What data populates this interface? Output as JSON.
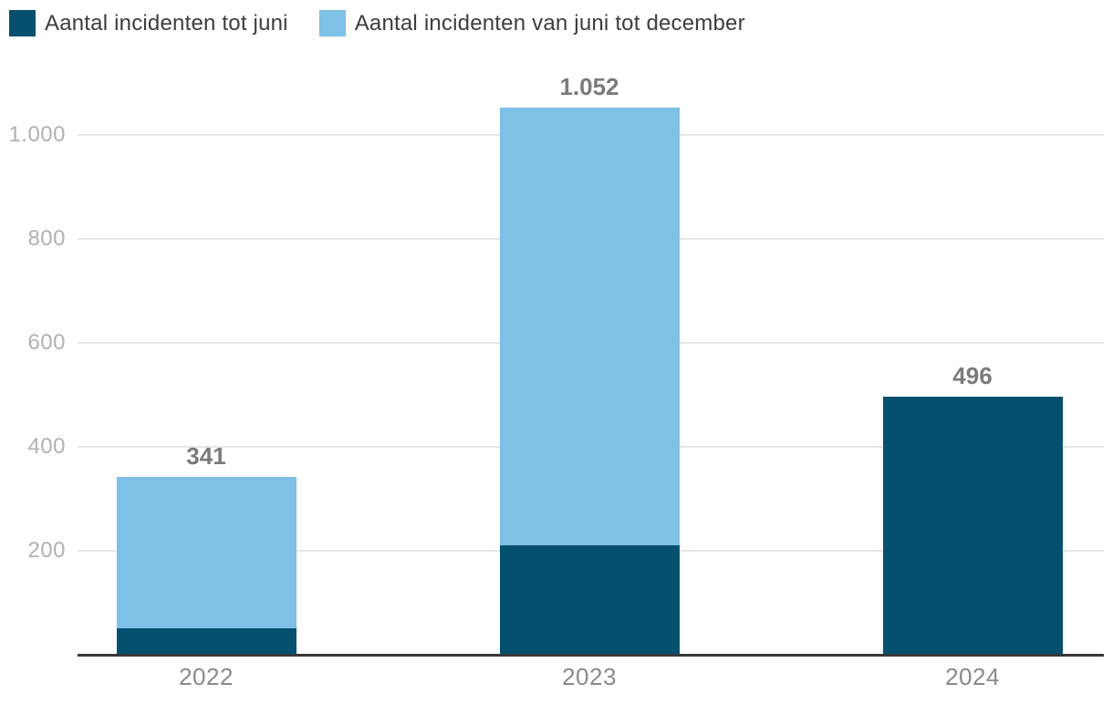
{
  "chart_data": {
    "type": "bar",
    "stacked": true,
    "title": "",
    "xlabel": "",
    "ylabel": "",
    "categories": [
      "2022",
      "2023",
      "2024"
    ],
    "series": [
      {
        "name": "Aantal incidenten tot juni",
        "color": "#05506E",
        "values": [
          50,
          210,
          496
        ]
      },
      {
        "name": "Aantal incidenten van juni tot december",
        "color": "#7FC0E7",
        "values": [
          291,
          842,
          0
        ]
      }
    ],
    "totals": [
      341,
      1052,
      496
    ],
    "total_labels": [
      "341",
      "1.052",
      "496"
    ],
    "ylim": [
      0,
      1100
    ],
    "yticks": [
      200,
      400,
      600,
      800,
      1000
    ],
    "ytick_labels": [
      "200",
      "400",
      "600",
      "800",
      "1.000"
    ],
    "grid": true,
    "legend_position": "top-left"
  },
  "colors": {
    "dark_series": "#05506E",
    "light_series": "#7FC0E7",
    "gridline": "#e7e7e7",
    "axis_line": "#383838",
    "value_label": "#7b7b7b",
    "x_label": "#8a8a8a",
    "y_tick_label": "#b1b1b1",
    "legend_text": "#3d3d3d",
    "background": "#ffffff"
  }
}
